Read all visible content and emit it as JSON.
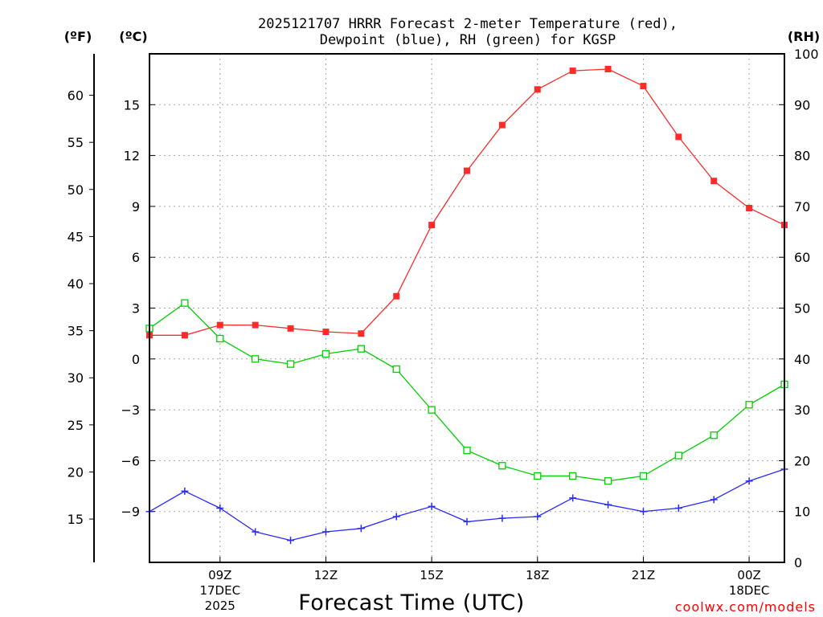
{
  "page": {
    "title_line1": "2025121707 HRRR Forecast 2-meter Temperature (red),",
    "title_line2": "Dewpoint (blue), RH (green) for KGSP",
    "credit": "coolwx.com/models",
    "credit_color": "#ff0000"
  },
  "chart_data": {
    "type": "line",
    "title": "2025121707 HRRR Forecast 2-meter Temperature (red), Dewpoint (blue), RH (green) for KGSP",
    "xlabel": "Forecast Time (UTC)",
    "x_hours": [
      7,
      8,
      9,
      10,
      11,
      12,
      13,
      14,
      15,
      16,
      17,
      18,
      19,
      20,
      21,
      22,
      23,
      24,
      25
    ],
    "x_range": [
      7,
      25
    ],
    "x_ticks": [
      {
        "hour": 9,
        "label": "09Z",
        "sub1": "17DEC",
        "sub2": "2025"
      },
      {
        "hour": 12,
        "label": "12Z",
        "sub1": "",
        "sub2": ""
      },
      {
        "hour": 15,
        "label": "15Z",
        "sub1": "",
        "sub2": ""
      },
      {
        "hour": 18,
        "label": "18Z",
        "sub1": "",
        "sub2": ""
      },
      {
        "hour": 21,
        "label": "21Z",
        "sub1": "",
        "sub2": ""
      },
      {
        "hour": 24,
        "label": "00Z",
        "sub1": "18DEC",
        "sub2": ""
      }
    ],
    "axes": {
      "fahrenheit": {
        "label": "(ºF)",
        "ticks": [
          15,
          20,
          25,
          30,
          35,
          40,
          45,
          50,
          55,
          60
        ]
      },
      "celsius": {
        "label": "(ºC)",
        "range": [
          -12,
          18
        ],
        "ticks": [
          -9,
          -6,
          -3,
          0,
          3,
          6,
          9,
          12,
          15
        ],
        "tick_labels": [
          "−9",
          "−6",
          "−3",
          "0",
          "3",
          "6",
          "9",
          "12",
          "15"
        ]
      },
      "rh": {
        "label": "(RH)",
        "range": [
          0,
          100
        ],
        "ticks": [
          0,
          10,
          20,
          30,
          40,
          50,
          60,
          70,
          80,
          90,
          100
        ]
      }
    },
    "series": [
      {
        "name": "Temperature",
        "axis": "celsius",
        "color": "#ff2a2a",
        "marker": "filled-square",
        "values": [
          1.4,
          1.4,
          2.0,
          2.0,
          1.8,
          1.6,
          1.5,
          3.7,
          7.9,
          11.1,
          13.8,
          15.9,
          17.0,
          17.1,
          16.1,
          13.1,
          10.5,
          8.9,
          7.9
        ]
      },
      {
        "name": "Dewpoint",
        "axis": "celsius",
        "color": "#2a2aff",
        "marker": "plus",
        "values": [
          -9.0,
          -7.8,
          -8.8,
          -10.2,
          -10.7,
          -10.2,
          -10.0,
          -9.3,
          -8.7,
          -9.6,
          -9.4,
          -9.3,
          -8.2,
          -8.6,
          -9.0,
          -8.8,
          -8.3,
          -7.2,
          -6.5
        ]
      },
      {
        "name": "RH",
        "axis": "rh",
        "color": "#00d000",
        "marker": "open-square",
        "values": [
          46,
          51,
          44,
          40,
          39,
          41,
          42,
          38,
          30,
          22,
          19,
          17,
          17,
          16,
          17,
          21,
          25,
          31,
          35
        ]
      }
    ],
    "grid": true
  }
}
